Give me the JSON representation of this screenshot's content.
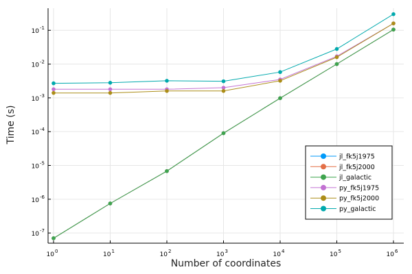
{
  "chart_data": {
    "type": "line",
    "title": "",
    "xlabel": "Number of coordinates",
    "ylabel": "Time (s)",
    "xscale": "log10",
    "yscale": "log10",
    "xlim": [
      1,
      1000000
    ],
    "ylim": [
      5e-08,
      0.45
    ],
    "grid": true,
    "legend_position": "bottom-right",
    "x": [
      1,
      10,
      100,
      1000,
      10000,
      100000,
      1000000
    ],
    "x_ticks": [
      {
        "value": 1,
        "base": "10",
        "exp": "0"
      },
      {
        "value": 10,
        "base": "10",
        "exp": "1"
      },
      {
        "value": 100,
        "base": "10",
        "exp": "2"
      },
      {
        "value": 1000,
        "base": "10",
        "exp": "3"
      },
      {
        "value": 10000,
        "base": "10",
        "exp": "4"
      },
      {
        "value": 100000,
        "base": "10",
        "exp": "5"
      },
      {
        "value": 1000000,
        "base": "10",
        "exp": "6"
      }
    ],
    "y_ticks": [
      {
        "value": 1e-07,
        "base": "10",
        "exp": "-7"
      },
      {
        "value": 1e-06,
        "base": "10",
        "exp": "-6"
      },
      {
        "value": 1e-05,
        "base": "10",
        "exp": "-5"
      },
      {
        "value": 0.0001,
        "base": "10",
        "exp": "-4"
      },
      {
        "value": 0.001,
        "base": "10",
        "exp": "-3"
      },
      {
        "value": 0.01,
        "base": "10",
        "exp": "-2"
      },
      {
        "value": 0.1,
        "base": "10",
        "exp": "-1"
      }
    ],
    "series": [
      {
        "name": "jl_fk5j1975",
        "color": "#009AFA",
        "values": [
          7e-08,
          7.5e-07,
          6.8e-06,
          9e-05,
          0.00098,
          0.01,
          0.105
        ]
      },
      {
        "name": "jl_fk5j2000",
        "color": "#E36F47",
        "values": [
          7e-08,
          7.5e-07,
          6.8e-06,
          9e-05,
          0.00098,
          0.01,
          0.105
        ]
      },
      {
        "name": "jl_galactic",
        "color": "#3EA44E",
        "values": [
          7e-08,
          7.5e-07,
          6.8e-06,
          9e-05,
          0.00098,
          0.01,
          0.105
        ]
      },
      {
        "name": "py_fk5j1975",
        "color": "#C271D2",
        "values": [
          0.0018,
          0.0018,
          0.0018,
          0.002,
          0.0035,
          0.017,
          0.16
        ]
      },
      {
        "name": "py_fk5j2000",
        "color": "#AC8D18",
        "values": [
          0.0014,
          0.0014,
          0.0016,
          0.0016,
          0.0032,
          0.016,
          0.16
        ]
      },
      {
        "name": "py_galactic",
        "color": "#00A9AD",
        "values": [
          0.0027,
          0.0028,
          0.0032,
          0.0031,
          0.0058,
          0.028,
          0.3
        ]
      }
    ]
  }
}
